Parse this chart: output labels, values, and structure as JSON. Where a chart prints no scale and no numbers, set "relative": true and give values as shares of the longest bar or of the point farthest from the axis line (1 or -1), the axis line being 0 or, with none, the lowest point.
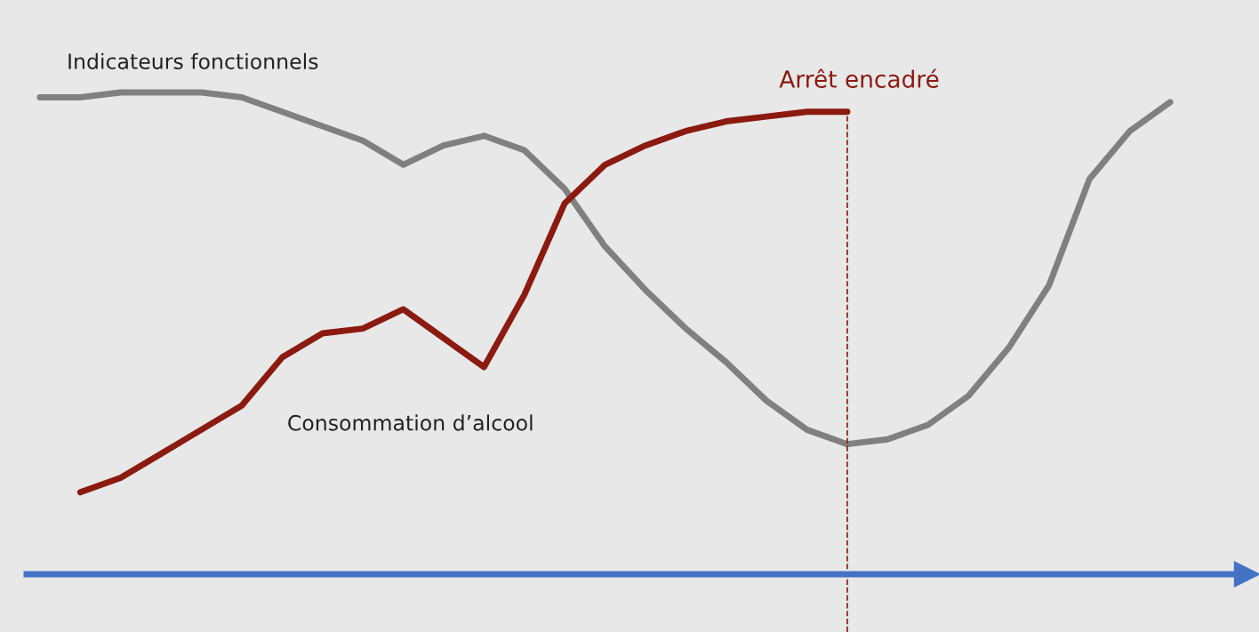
{
  "chart_data": {
    "type": "line",
    "relative": true,
    "categories": [
      null,
      null,
      null,
      null,
      null,
      null,
      null,
      null,
      null,
      null,
      null,
      null,
      null,
      null,
      null,
      null,
      null,
      null,
      null,
      null,
      null,
      null,
      null,
      null,
      null,
      null,
      null,
      null,
      null
    ],
    "series": [
      {
        "name": "Indicateurs fonctionnels",
        "color": "#808080",
        "values": [
          0.99,
          0.99,
          1.0,
          1.0,
          1.0,
          0.99,
          0.96,
          0.93,
          0.9,
          0.85,
          0.89,
          0.91,
          0.88,
          0.8,
          0.68,
          0.59,
          0.51,
          0.44,
          0.36,
          0.3,
          0.27,
          0.28,
          0.31,
          0.37,
          0.47,
          0.6,
          0.82,
          0.92,
          0.98
        ]
      },
      {
        "name": "Consommation d’alcool",
        "color": "#8b1a10",
        "values": [
          null,
          0.17,
          0.2,
          0.25,
          0.3,
          0.35,
          0.45,
          0.5,
          0.51,
          0.55,
          0.49,
          0.43,
          0.58,
          0.77,
          0.85,
          0.89,
          0.92,
          0.94,
          0.95,
          0.96,
          0.96,
          null,
          null,
          null,
          null,
          null,
          null,
          null,
          null
        ]
      }
    ],
    "annotations": [
      "Arrêt encadré"
    ],
    "line_style": "solid"
  }
}
